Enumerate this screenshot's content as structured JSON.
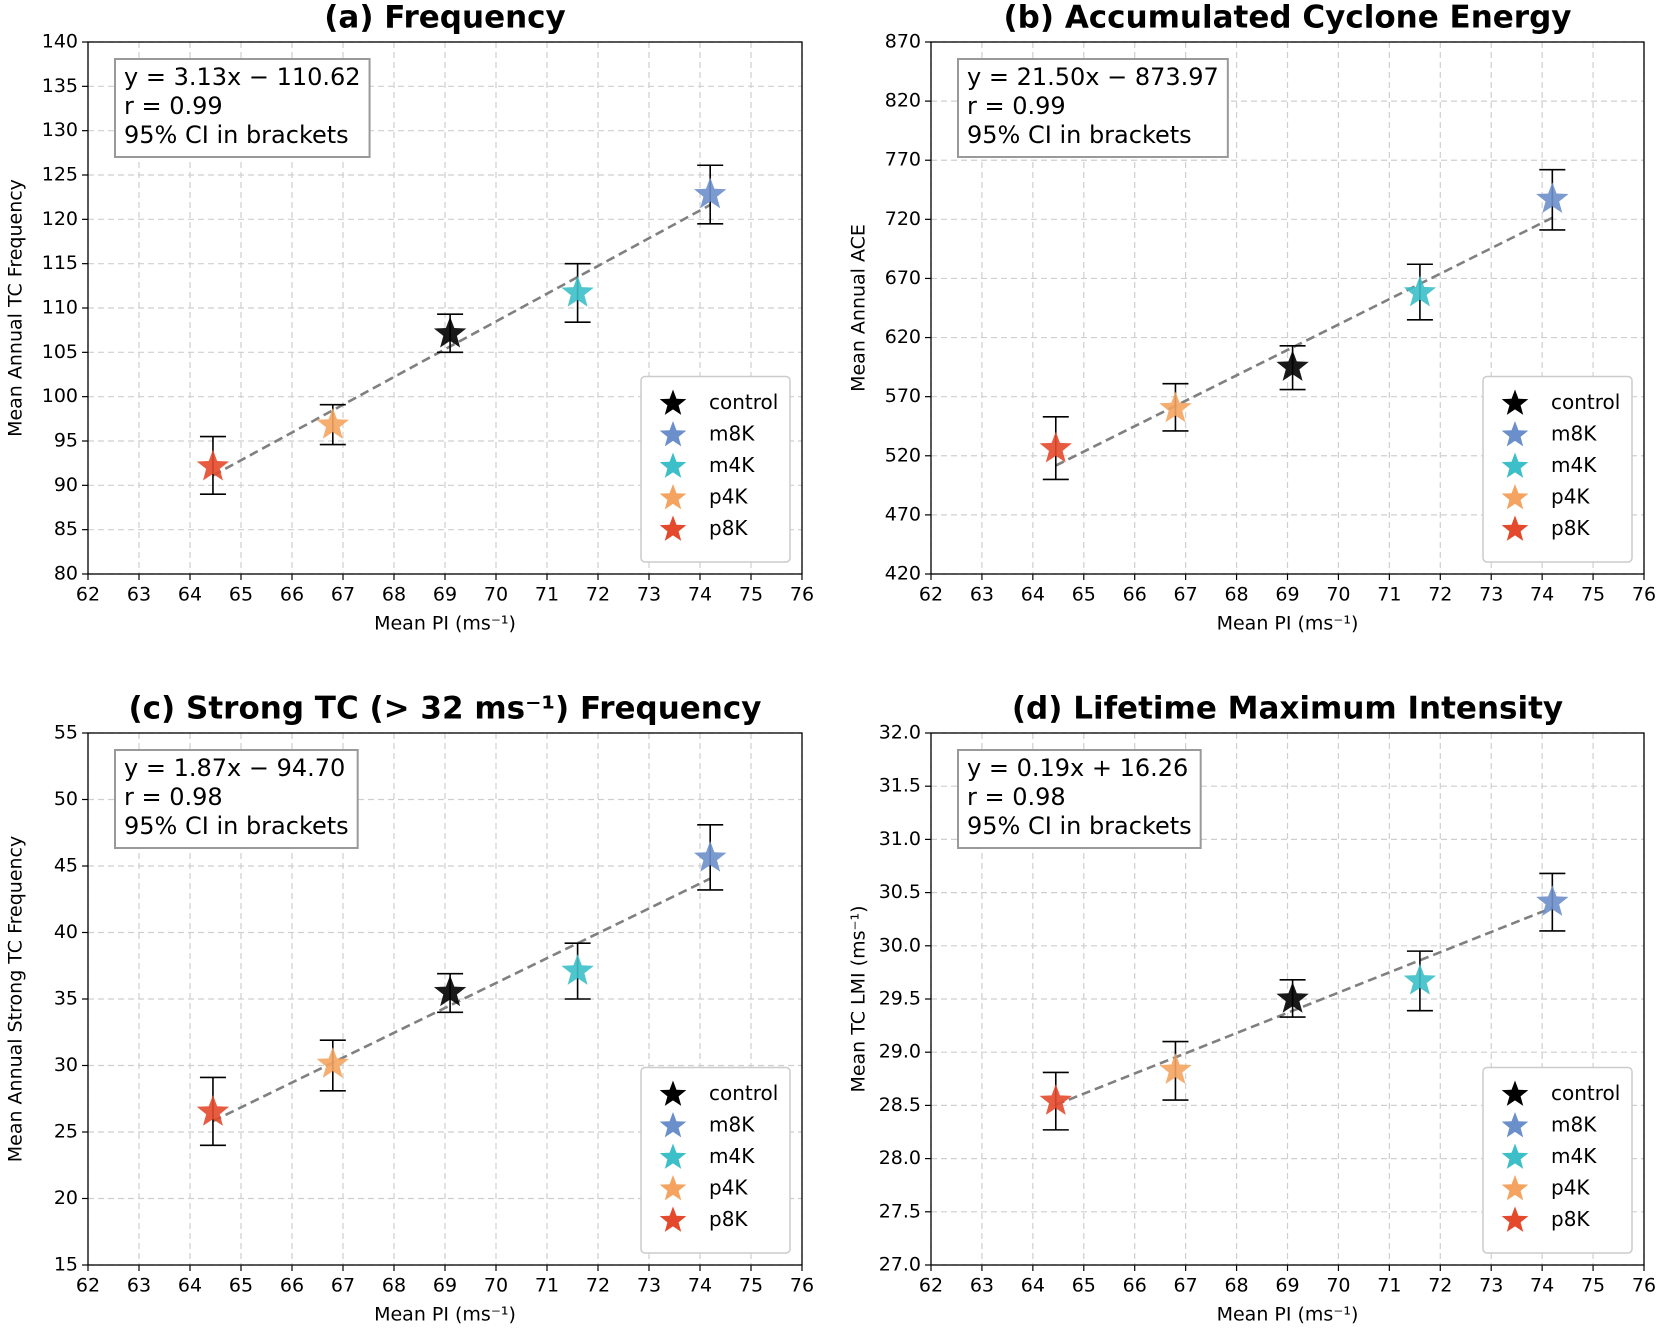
{
  "chart_data": [
    {
      "type": "scatter",
      "title": "(a) Frequency",
      "xlabel": "Mean PI (ms⁻¹)",
      "ylabel": "Mean Annual TC Frequency",
      "xlim": [
        62,
        76
      ],
      "xticks": [
        62,
        63,
        64,
        65,
        66,
        67,
        68,
        69,
        70,
        71,
        72,
        73,
        74,
        75,
        76
      ],
      "ylim": [
        80,
        140
      ],
      "yticks": [
        80,
        85,
        90,
        95,
        100,
        105,
        110,
        115,
        120,
        125,
        130,
        135,
        140
      ],
      "grid": true,
      "legend": "lower right",
      "annotations": [
        "y = 3.13x − 110.62",
        "r = 0.99",
        "95% CI in brackets"
      ],
      "slope": 3.13,
      "intercept": -110.62,
      "series": [
        {
          "name": "control",
          "color": "#000000",
          "x": [
            69.1
          ],
          "values": [
            107.1
          ],
          "ci_low": [
            105.0
          ],
          "ci_high": [
            109.3
          ]
        },
        {
          "name": "m8K",
          "color": "#6b8fcb",
          "x": [
            74.2
          ],
          "values": [
            122.8
          ],
          "ci_low": [
            119.5
          ],
          "ci_high": [
            126.1
          ]
        },
        {
          "name": "m4K",
          "color": "#3cbfc8",
          "x": [
            71.6
          ],
          "values": [
            111.7
          ],
          "ci_low": [
            108.4
          ],
          "ci_high": [
            115.0
          ]
        },
        {
          "name": "p4K",
          "color": "#f4a460",
          "x": [
            66.8
          ],
          "values": [
            96.8
          ],
          "ci_low": [
            94.6
          ],
          "ci_high": [
            99.1
          ]
        },
        {
          "name": "p8K",
          "color": "#e4492b",
          "x": [
            64.45
          ],
          "values": [
            92.1
          ],
          "ci_low": [
            89.0
          ],
          "ci_high": [
            95.5
          ]
        }
      ]
    },
    {
      "type": "scatter",
      "title": "(b) Accumulated Cyclone Energy",
      "xlabel": "Mean PI (ms⁻¹)",
      "ylabel": "Mean Annual ACE",
      "xlim": [
        62,
        76
      ],
      "xticks": [
        62,
        63,
        64,
        65,
        66,
        67,
        68,
        69,
        70,
        71,
        72,
        73,
        74,
        75,
        76
      ],
      "ylim": [
        420,
        870
      ],
      "yticks": [
        420,
        470,
        520,
        570,
        620,
        670,
        720,
        770,
        820,
        870
      ],
      "grid": true,
      "legend": "lower right",
      "annotations": [
        "y = 21.50x − 873.97",
        "r = 0.99",
        "95% CI in brackets"
      ],
      "slope": 21.5,
      "intercept": -873.97,
      "series": [
        {
          "name": "control",
          "color": "#000000",
          "x": [
            69.1
          ],
          "values": [
            595
          ],
          "ci_low": [
            576
          ],
          "ci_high": [
            613
          ]
        },
        {
          "name": "m8K",
          "color": "#6b8fcb",
          "x": [
            74.2
          ],
          "values": [
            737
          ],
          "ci_low": [
            711
          ],
          "ci_high": [
            762
          ]
        },
        {
          "name": "m4K",
          "color": "#3cbfc8",
          "x": [
            71.6
          ],
          "values": [
            658
          ],
          "ci_low": [
            635
          ],
          "ci_high": [
            682
          ]
        },
        {
          "name": "p4K",
          "color": "#f4a460",
          "x": [
            66.8
          ],
          "values": [
            560
          ],
          "ci_low": [
            541
          ],
          "ci_high": [
            581
          ]
        },
        {
          "name": "p8K",
          "color": "#e4492b",
          "x": [
            64.45
          ],
          "values": [
            526
          ],
          "ci_low": [
            500
          ],
          "ci_high": [
            553
          ]
        }
      ]
    },
    {
      "type": "scatter",
      "title": "(c) Strong TC (> 32 ms⁻¹) Frequency",
      "xlabel": "Mean PI (ms⁻¹)",
      "ylabel": "Mean Annual Strong TC Frequency",
      "xlim": [
        62,
        76
      ],
      "xticks": [
        62,
        63,
        64,
        65,
        66,
        67,
        68,
        69,
        70,
        71,
        72,
        73,
        74,
        75,
        76
      ],
      "ylim": [
        15,
        55
      ],
      "yticks": [
        15,
        20,
        25,
        30,
        35,
        40,
        45,
        50,
        55
      ],
      "grid": true,
      "legend": "lower right",
      "annotations": [
        "y = 1.87x − 94.70",
        "r = 0.98",
        "95% CI in brackets"
      ],
      "slope": 1.87,
      "intercept": -94.7,
      "series": [
        {
          "name": "control",
          "color": "#000000",
          "x": [
            69.1
          ],
          "values": [
            35.5
          ],
          "ci_low": [
            34.0
          ],
          "ci_high": [
            36.9
          ]
        },
        {
          "name": "m8K",
          "color": "#6b8fcb",
          "x": [
            74.2
          ],
          "values": [
            45.6
          ],
          "ci_low": [
            43.2
          ],
          "ci_high": [
            48.1
          ]
        },
        {
          "name": "m4K",
          "color": "#3cbfc8",
          "x": [
            71.6
          ],
          "values": [
            37.1
          ],
          "ci_low": [
            35.0
          ],
          "ci_high": [
            39.2
          ]
        },
        {
          "name": "p4K",
          "color": "#f4a460",
          "x": [
            66.8
          ],
          "values": [
            30.1
          ],
          "ci_low": [
            28.1
          ],
          "ci_high": [
            31.9
          ]
        },
        {
          "name": "p8K",
          "color": "#e4492b",
          "x": [
            64.45
          ],
          "values": [
            26.5
          ],
          "ci_low": [
            24.0
          ],
          "ci_high": [
            29.1
          ]
        }
      ]
    },
    {
      "type": "scatter",
      "title": "(d) Lifetime Maximum Intensity",
      "xlabel": "Mean PI (ms⁻¹)",
      "ylabel": "Mean TC LMI (ms⁻¹)",
      "xlim": [
        62,
        76
      ],
      "xticks": [
        62,
        63,
        64,
        65,
        66,
        67,
        68,
        69,
        70,
        71,
        72,
        73,
        74,
        75,
        76
      ],
      "ylim": [
        27,
        32
      ],
      "yticks": [
        {
          "value": 27,
          "label": "27.0"
        },
        27.5,
        {
          "value": 28,
          "label": "28.0"
        },
        28.5,
        {
          "value": 29,
          "label": "29.0"
        },
        29.5,
        {
          "value": 30,
          "label": "30.0"
        },
        30.5,
        {
          "value": 31,
          "label": "31.0"
        },
        31.5,
        {
          "value": 32,
          "label": "32.0"
        }
      ],
      "grid": true,
      "legend": "lower right",
      "annotations": [
        "y = 0.19x + 16.26",
        "r = 0.98",
        "95% CI in brackets"
      ],
      "slope": 0.19,
      "intercept": 16.26,
      "series": [
        {
          "name": "control",
          "color": "#000000",
          "x": [
            69.1
          ],
          "values": [
            29.5
          ],
          "ci_low": [
            29.33
          ],
          "ci_high": [
            29.68
          ]
        },
        {
          "name": "m8K",
          "color": "#6b8fcb",
          "x": [
            74.2
          ],
          "values": [
            30.41
          ],
          "ci_low": [
            30.14
          ],
          "ci_high": [
            30.68
          ]
        },
        {
          "name": "m4K",
          "color": "#3cbfc8",
          "x": [
            71.6
          ],
          "values": [
            29.67
          ],
          "ci_low": [
            29.39
          ],
          "ci_high": [
            29.95
          ]
        },
        {
          "name": "p4K",
          "color": "#f4a460",
          "x": [
            66.8
          ],
          "values": [
            28.83
          ],
          "ci_low": [
            28.55
          ],
          "ci_high": [
            29.1
          ]
        },
        {
          "name": "p8K",
          "color": "#e4492b",
          "x": [
            64.45
          ],
          "values": [
            28.54
          ],
          "ci_low": [
            28.27
          ],
          "ci_high": [
            28.81
          ]
        }
      ]
    }
  ]
}
